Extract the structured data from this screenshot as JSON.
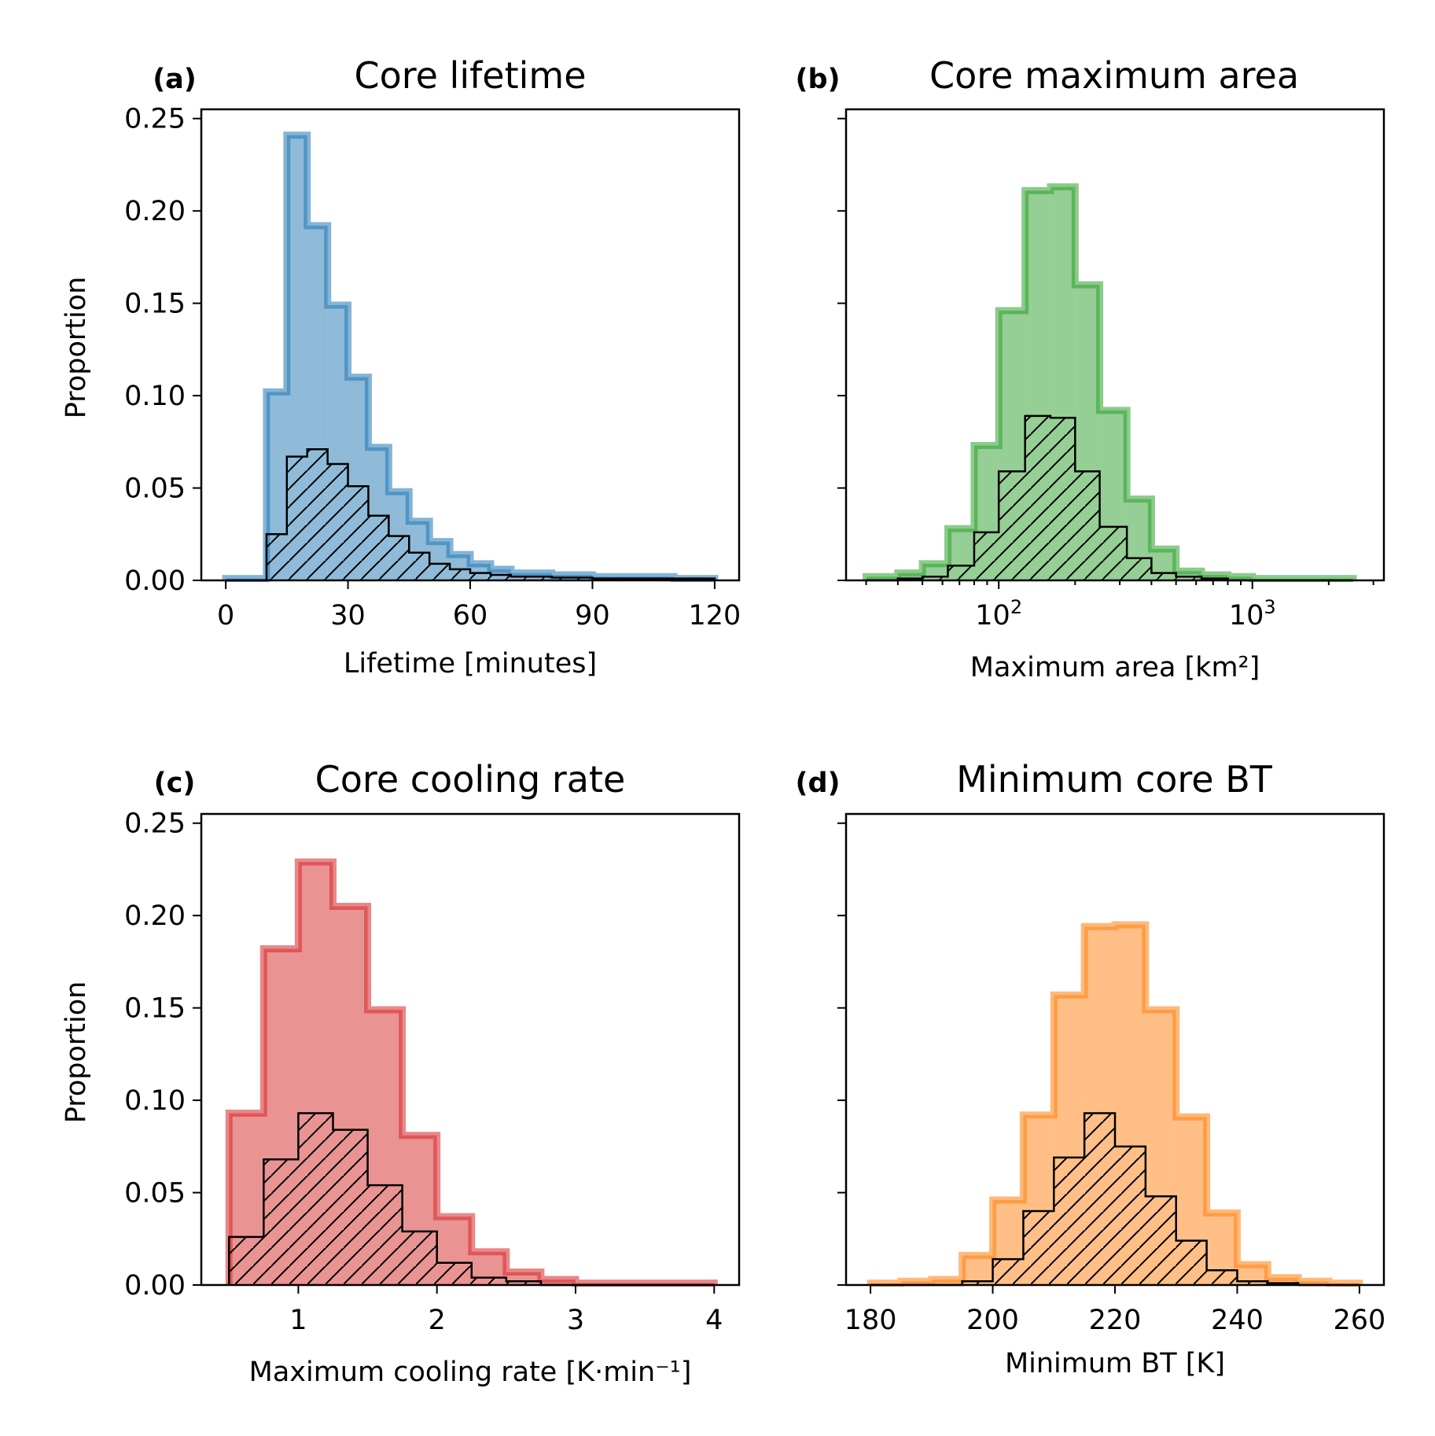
{
  "figure": {
    "y_axis_label": "Proportion"
  },
  "chart_data": [
    {
      "type": "histogram",
      "panel_letter": "(a)",
      "title": "Core lifetime",
      "xlabel": "Lifetime [minutes]",
      "ylabel": "Proportion",
      "xscale": "linear",
      "xlim": [
        -6,
        126
      ],
      "ylim": [
        0,
        0.255
      ],
      "xticks": [
        0,
        30,
        60,
        90,
        120
      ],
      "xtick_labels": [
        "0",
        "30",
        "60",
        "90",
        "120"
      ],
      "yticks": [
        0,
        0.05,
        0.1,
        0.15,
        0.2,
        0.25
      ],
      "ytick_labels": [
        "0.00",
        "0.05",
        "0.10",
        "0.15",
        "0.20",
        "0.25"
      ],
      "show_ytick_labels": true,
      "color": "#1f77b4",
      "bin_edges": [
        0,
        10,
        15,
        20,
        25,
        30,
        35,
        40,
        45,
        50,
        55,
        60,
        65,
        70,
        80,
        90,
        100,
        110,
        120
      ],
      "series": [
        {
          "style": "filled",
          "values": [
            0.001,
            0.102,
            0.241,
            0.192,
            0.149,
            0.11,
            0.072,
            0.048,
            0.032,
            0.021,
            0.014,
            0.009,
            0.006,
            0.004,
            0.003,
            0.002,
            0.002,
            0.001
          ]
        },
        {
          "style": "hatched",
          "values": [
            0.0,
            0.025,
            0.067,
            0.071,
            0.063,
            0.051,
            0.035,
            0.024,
            0.015,
            0.009,
            0.006,
            0.004,
            0.003,
            0.002,
            0.0015,
            0.001,
            0.001,
            0.001
          ]
        }
      ]
    },
    {
      "type": "histogram",
      "panel_letter": "(b)",
      "title": "Core maximum area",
      "xlabel": "Maximum area [km²]",
      "ylabel": "",
      "xscale": "log",
      "xlim": [
        25,
        3300
      ],
      "ylim": [
        0,
        0.255
      ],
      "xticks": [
        100,
        1000
      ],
      "xtick_labels": [
        "10",
        "10"
      ],
      "xtick_exponents": [
        "2",
        "3"
      ],
      "yticks": [
        0,
        0.05,
        0.1,
        0.15,
        0.2,
        0.25
      ],
      "ytick_labels": [
        "0.00",
        "0.05",
        "0.10",
        "0.15",
        "0.20",
        "0.25"
      ],
      "show_ytick_labels": false,
      "color": "#2ca02c",
      "bin_edges": [
        30,
        40,
        50,
        63,
        80,
        100,
        127,
        160,
        200,
        250,
        320,
        400,
        500,
        630,
        800,
        1000,
        2500
      ],
      "series": [
        {
          "style": "filled",
          "values": [
            0.002,
            0.004,
            0.009,
            0.028,
            0.073,
            0.146,
            0.211,
            0.213,
            0.16,
            0.092,
            0.044,
            0.017,
            0.005,
            0.003,
            0.002,
            0.001
          ]
        },
        {
          "style": "hatched",
          "values": [
            0.0,
            0.001,
            0.002,
            0.008,
            0.026,
            0.059,
            0.089,
            0.088,
            0.059,
            0.029,
            0.012,
            0.004,
            0.002,
            0.001,
            0.0,
            0.0
          ]
        }
      ]
    },
    {
      "type": "histogram",
      "panel_letter": "(c)",
      "title": "Core cooling rate",
      "xlabel": "Maximum cooling rate [K·min⁻¹]",
      "ylabel": "Proportion",
      "xscale": "linear",
      "xlim": [
        0.3,
        4.18
      ],
      "ylim": [
        0,
        0.255
      ],
      "xticks": [
        1,
        2,
        3,
        4
      ],
      "xtick_labels": [
        "1",
        "2",
        "3",
        "4"
      ],
      "yticks": [
        0,
        0.05,
        0.1,
        0.15,
        0.2,
        0.25
      ],
      "ytick_labels": [
        "0.00",
        "0.05",
        "0.10",
        "0.15",
        "0.20",
        "0.25"
      ],
      "show_ytick_labels": true,
      "color": "#d62728",
      "bin_edges": [
        0.5,
        0.75,
        1.0,
        1.25,
        1.5,
        1.75,
        2.0,
        2.25,
        2.5,
        2.75,
        3.0,
        3.5,
        4.0
      ],
      "series": [
        {
          "style": "filled",
          "values": [
            0.093,
            0.182,
            0.229,
            0.205,
            0.149,
            0.081,
            0.037,
            0.018,
            0.007,
            0.003,
            0.001,
            0.001
          ]
        },
        {
          "style": "hatched",
          "values": [
            0.026,
            0.068,
            0.093,
            0.084,
            0.054,
            0.029,
            0.012,
            0.004,
            0.002,
            0.0,
            0.0,
            0.0
          ]
        }
      ]
    },
    {
      "type": "histogram",
      "panel_letter": "(d)",
      "title": "Minimum core BT",
      "xlabel": "Minimum BT [K]",
      "ylabel": "",
      "xscale": "linear",
      "xlim": [
        176,
        264
      ],
      "ylim": [
        0,
        0.255
      ],
      "xticks": [
        180,
        200,
        220,
        240,
        260
      ],
      "xtick_labels": [
        "180",
        "200",
        "220",
        "240",
        "260"
      ],
      "yticks": [
        0,
        0.05,
        0.1,
        0.15,
        0.2,
        0.25
      ],
      "ytick_labels": [
        "0.00",
        "0.05",
        "0.10",
        "0.15",
        "0.20",
        "0.25"
      ],
      "show_ytick_labels": false,
      "color": "#ff7f0e",
      "bin_edges": [
        180,
        185,
        190,
        195,
        200,
        205,
        210,
        215,
        220,
        225,
        230,
        235,
        240,
        245,
        250,
        255,
        260
      ],
      "series": [
        {
          "style": "filled",
          "values": [
            0.001,
            0.002,
            0.003,
            0.016,
            0.046,
            0.092,
            0.157,
            0.194,
            0.195,
            0.149,
            0.091,
            0.039,
            0.011,
            0.004,
            0.002,
            0.001
          ]
        },
        {
          "style": "hatched",
          "values": [
            0.0,
            0.0,
            0.0,
            0.002,
            0.014,
            0.04,
            0.069,
            0.093,
            0.075,
            0.048,
            0.024,
            0.008,
            0.002,
            0.001,
            0.0,
            0.0
          ]
        }
      ]
    }
  ]
}
